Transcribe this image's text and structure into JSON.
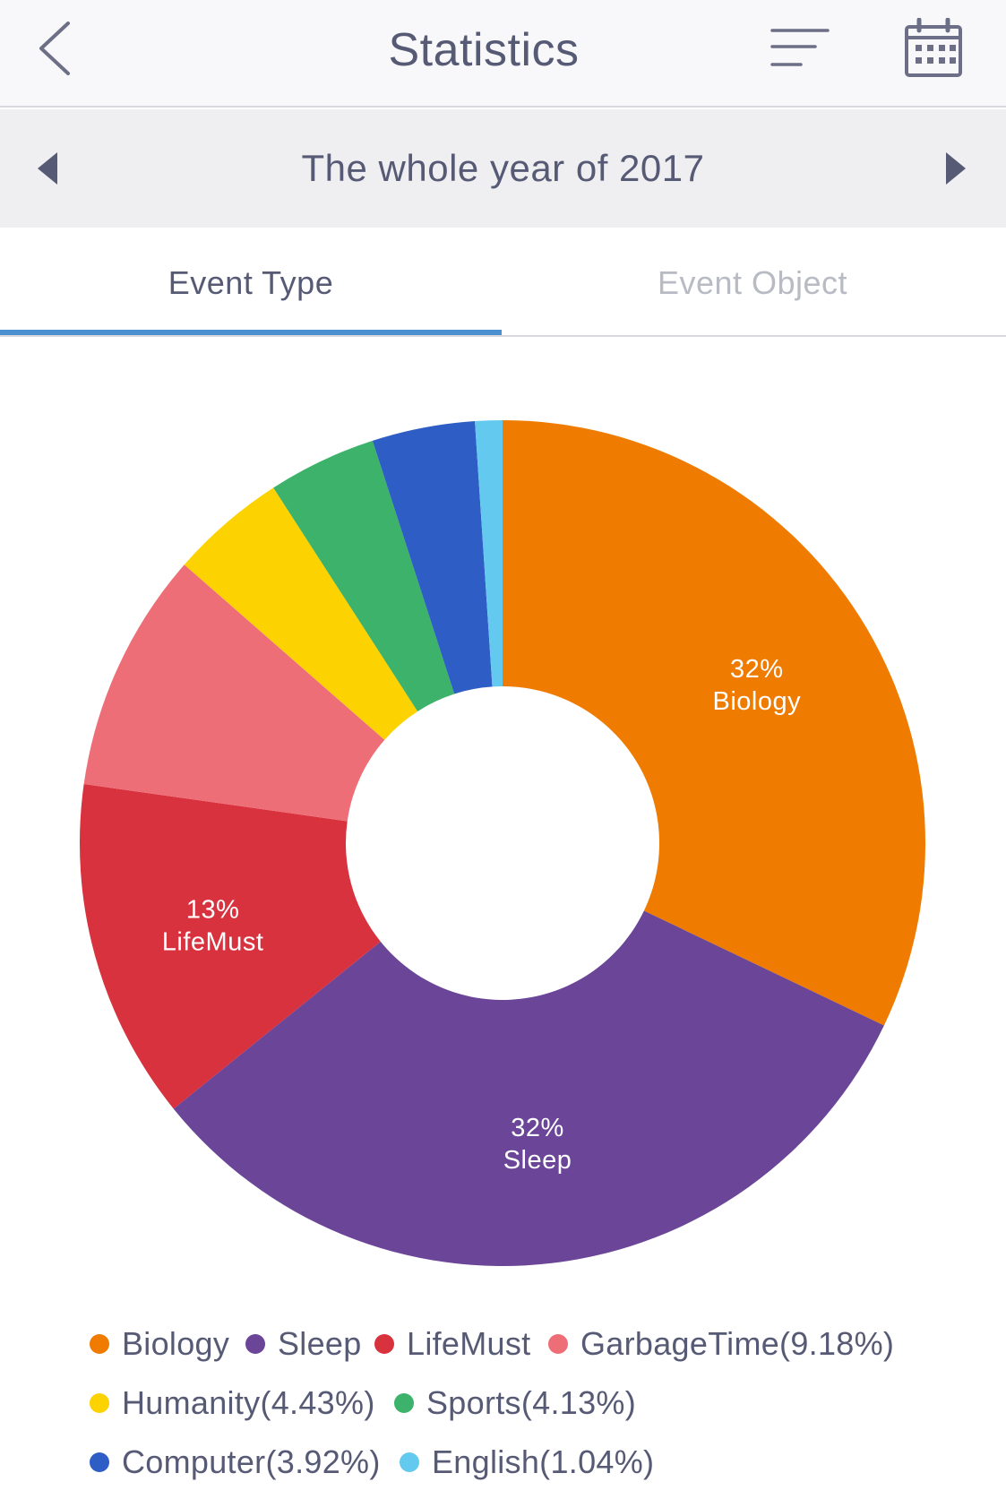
{
  "header": {
    "title": "Statistics",
    "back_icon": "chevron-left-icon",
    "filter_icon": "sort-lines-icon",
    "calendar_icon": "calendar-icon"
  },
  "period": {
    "label": "The whole year of 2017",
    "prev_icon": "triangle-left-icon",
    "next_icon": "triangle-right-icon"
  },
  "tabs": [
    {
      "label": "Event Type",
      "active": true
    },
    {
      "label": "Event Object",
      "active": false
    }
  ],
  "colors": {
    "accent": "#4a90d0",
    "text": "#565a75",
    "inactive_text": "#b8bac4"
  },
  "chart_data": {
    "type": "pie",
    "donut": true,
    "categories": [
      "Biology",
      "Sleep",
      "LifeMust",
      "GarbageTime",
      "Humanity",
      "Sports",
      "Computer",
      "English"
    ],
    "values": [
      32.0,
      32.0,
      13.0,
      9.18,
      4.43,
      4.13,
      3.92,
      1.04
    ],
    "colors": [
      "#ef7b00",
      "#6a4598",
      "#d8323f",
      "#ee6e77",
      "#fcd201",
      "#3cb26a",
      "#2f5dc6",
      "#64c9ef"
    ],
    "slice_labels": [
      {
        "percent": "32%",
        "name": "Biology"
      },
      {
        "percent": "32%",
        "name": "Sleep"
      },
      {
        "percent": "13%",
        "name": "LifeMust"
      }
    ],
    "legend": [
      "Biology",
      "Sleep",
      "LifeMust",
      "GarbageTime(9.18%)",
      "Humanity(4.43%)",
      "Sports(4.13%)",
      "Computer(3.92%)",
      "English(1.04%)"
    ],
    "legend_placement": "bottom"
  }
}
